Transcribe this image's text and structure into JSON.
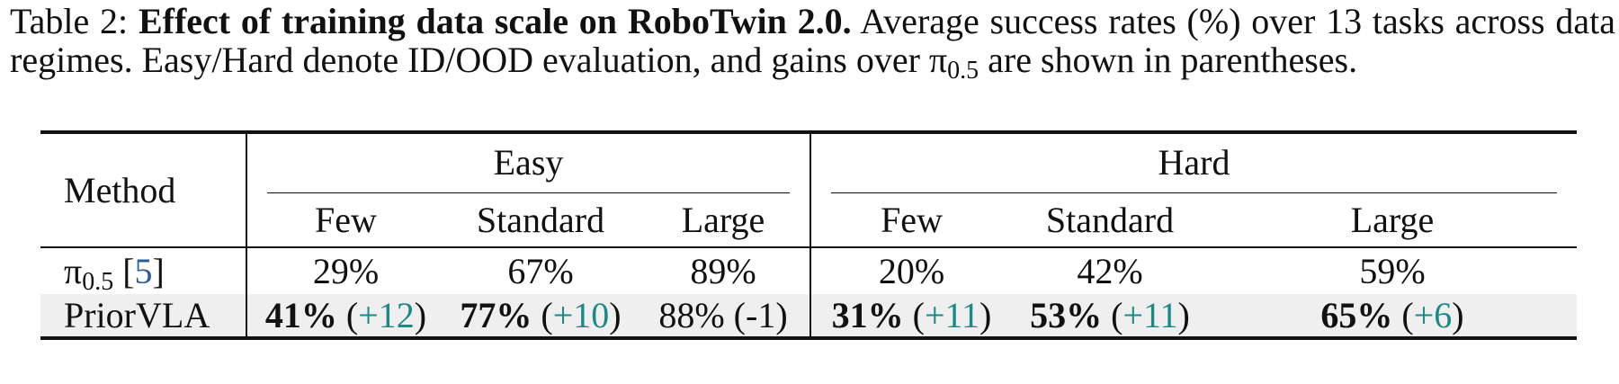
{
  "caption": {
    "label": "Table 2:",
    "title": "Effect of training data scale on RoboTwin 2.0.",
    "text_1": "Average success rates (%) over 13 tasks across data regimes. Easy/Hard denote ID/OOD evaluation, and gains over",
    "pi_symbol": "π",
    "pi_sub": "0.5",
    "text_2": "are shown in parentheses."
  },
  "table": {
    "method_header": "Method",
    "groups": [
      "Easy",
      "Hard"
    ],
    "subcolumns": [
      "Few",
      "Standard",
      "Large",
      "Few",
      "Standard",
      "Large"
    ],
    "rows": [
      {
        "method": "π",
        "method_sub": "0.5",
        "cite": "5",
        "cells": [
          {
            "value": "29%",
            "bold": false,
            "gain": ""
          },
          {
            "value": "67%",
            "bold": false,
            "gain": ""
          },
          {
            "value": "89%",
            "bold": true,
            "gain": ""
          },
          {
            "value": "20%",
            "bold": false,
            "gain": ""
          },
          {
            "value": "42%",
            "bold": false,
            "gain": ""
          },
          {
            "value": "59%",
            "bold": false,
            "gain": ""
          }
        ]
      },
      {
        "method": "PriorVLA",
        "cells": [
          {
            "value": "41%",
            "bold": true,
            "gain": "+12"
          },
          {
            "value": "77%",
            "bold": true,
            "gain": "+10"
          },
          {
            "value": "88% (-1)",
            "bold": false,
            "gain": ""
          },
          {
            "value": "31%",
            "bold": true,
            "gain": "+11"
          },
          {
            "value": "53%",
            "bold": true,
            "gain": "+11"
          },
          {
            "value": "65%",
            "bold": true,
            "gain": "+6"
          }
        ]
      }
    ],
    "colors": {
      "gain": "#1b8a86",
      "cite": "#2a5c9a",
      "highlight_row": "#efefef"
    }
  }
}
